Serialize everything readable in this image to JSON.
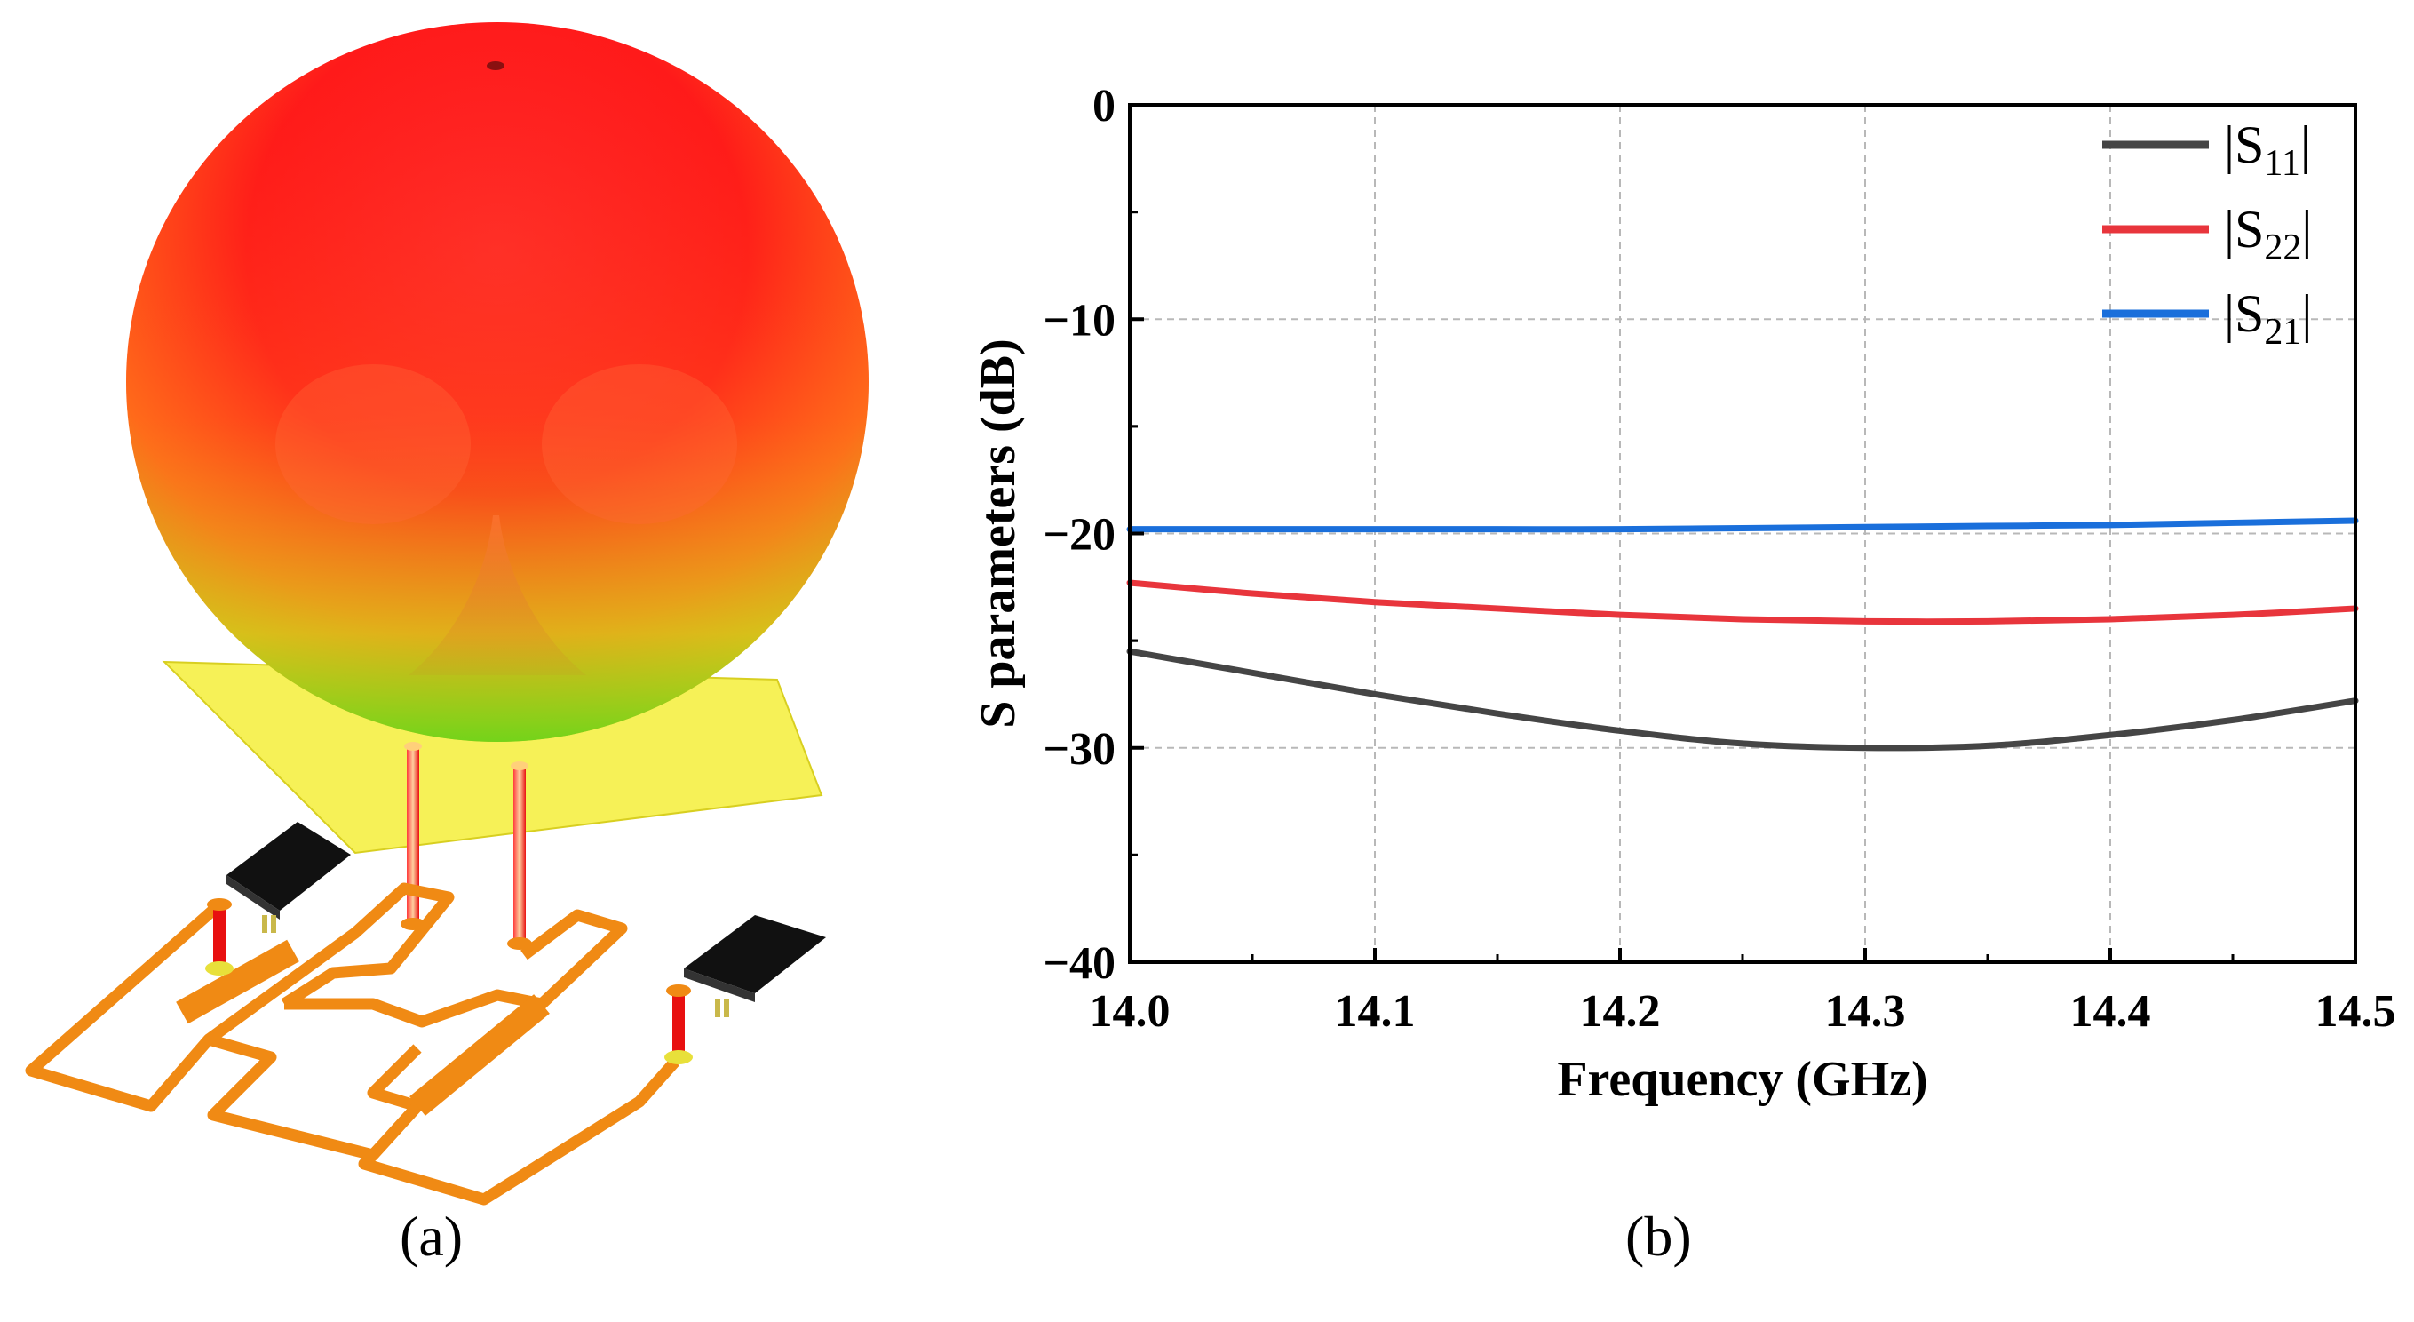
{
  "panel_a": {
    "caption": "(a)",
    "colors": {
      "lobe_top": "#ff1a1a",
      "lobe_mid": "#ff6a1a",
      "lobe_bottom": "#7ed61a",
      "ground_plane": "#f4ef3a",
      "feed_trace": "#f08a14",
      "probe": "#e81010",
      "chip": "#111111"
    },
    "icons": [
      "radiation-pattern-lobe",
      "ground-plane",
      "feed-network",
      "chip-component"
    ]
  },
  "panel_b": {
    "caption": "(b)"
  },
  "chart_data": {
    "type": "line",
    "title": "",
    "xlabel": "Frequency (GHz)",
    "ylabel": "S parameters (dB)",
    "xlim": [
      14.0,
      14.5
    ],
    "ylim": [
      -40,
      0
    ],
    "xticks": [
      14.0,
      14.1,
      14.2,
      14.3,
      14.4,
      14.5
    ],
    "xtick_labels": [
      "14.0",
      "14.1",
      "14.2",
      "14.3",
      "14.4",
      "14.5"
    ],
    "yticks": [
      0,
      -10,
      -20,
      -30,
      -40
    ],
    "ytick_labels": [
      "0",
      "−10",
      "−20",
      "−30",
      "−40"
    ],
    "grid": true,
    "legend_position": "top-right",
    "series": [
      {
        "name": "|S11|",
        "legend_main": "|S",
        "legend_sub": "11",
        "legend_end": "|",
        "color": "#454545",
        "x": [
          14.0,
          14.05,
          14.1,
          14.15,
          14.2,
          14.25,
          14.3,
          14.35,
          14.4,
          14.45,
          14.5
        ],
        "y": [
          -25.5,
          -26.5,
          -27.5,
          -28.4,
          -29.2,
          -29.8,
          -30.0,
          -29.9,
          -29.4,
          -28.7,
          -27.8
        ]
      },
      {
        "name": "|S22|",
        "legend_main": "|S",
        "legend_sub": "22",
        "legend_end": "|",
        "color": "#e8353c",
        "x": [
          14.0,
          14.05,
          14.1,
          14.15,
          14.2,
          14.25,
          14.3,
          14.35,
          14.4,
          14.45,
          14.5
        ],
        "y": [
          -22.3,
          -22.8,
          -23.2,
          -23.5,
          -23.8,
          -24.0,
          -24.1,
          -24.1,
          -24.0,
          -23.8,
          -23.5
        ]
      },
      {
        "name": "|S21|",
        "legend_main": "|S",
        "legend_sub": "21",
        "legend_end": "|",
        "color": "#1a6fdb",
        "x": [
          14.0,
          14.05,
          14.1,
          14.15,
          14.2,
          14.25,
          14.3,
          14.35,
          14.4,
          14.45,
          14.5
        ],
        "y": [
          -19.8,
          -19.8,
          -19.8,
          -19.8,
          -19.8,
          -19.75,
          -19.7,
          -19.65,
          -19.6,
          -19.5,
          -19.4
        ]
      }
    ]
  }
}
